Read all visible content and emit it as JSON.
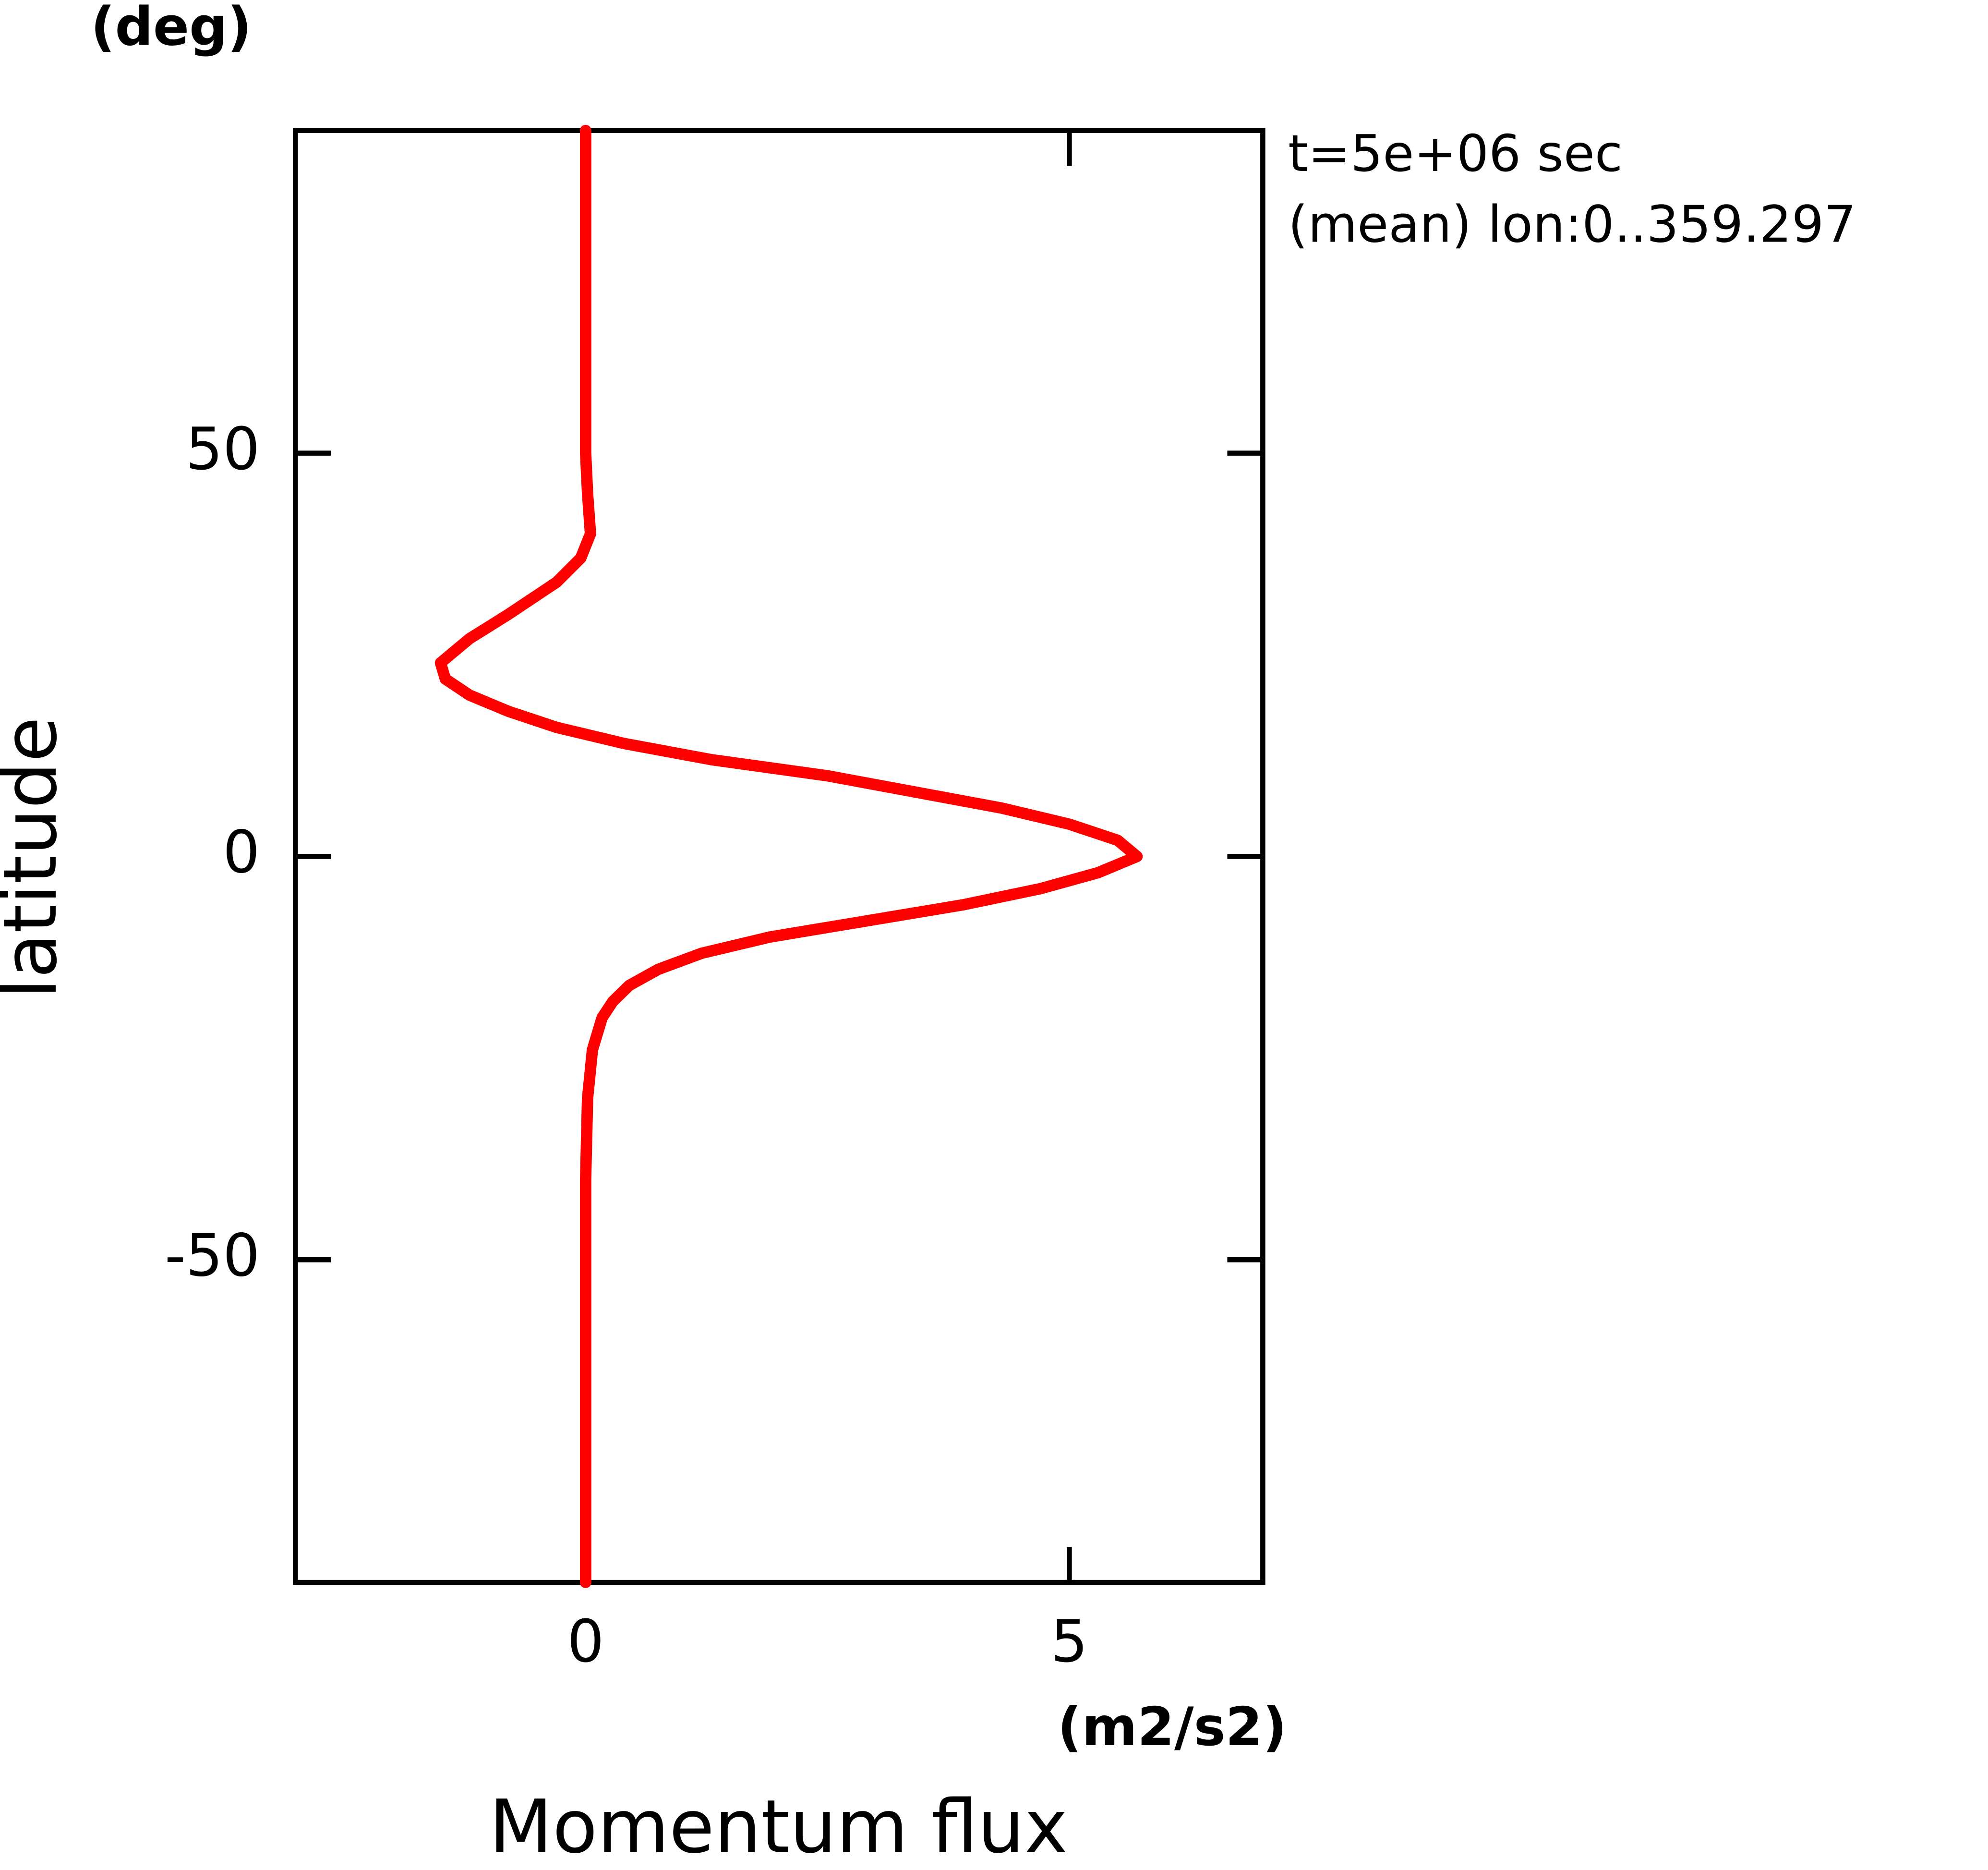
{
  "chart_data": {
    "type": "line",
    "y_label": "latitude",
    "y_unit": "(deg)",
    "x_label": "Momentum flux",
    "x_unit": "(m2/s2)",
    "annotations": [
      "t=5e+06 sec",
      "(mean) lon:0..359.297"
    ],
    "y": [
      90,
      80,
      70,
      60,
      50,
      45,
      40,
      37,
      34,
      30,
      27,
      24,
      22,
      20,
      18,
      16,
      14,
      12,
      10,
      8,
      6,
      4,
      2,
      0,
      -2,
      -4,
      -6,
      -8,
      -10,
      -12,
      -14,
      -16,
      -18,
      -20,
      -24,
      -30,
      -40,
      -50,
      -60,
      -70,
      -80,
      -90
    ],
    "series": [
      {
        "color": "#ff0000",
        "values": [
          0,
          0,
          0,
          0,
          0,
          0.02,
          0.05,
          -0.05,
          -0.3,
          -0.8,
          -1.2,
          -1.5,
          -1.45,
          -1.2,
          -0.8,
          -0.3,
          0.4,
          1.3,
          2.5,
          3.4,
          4.3,
          5.0,
          5.5,
          5.7,
          5.3,
          4.7,
          3.9,
          2.9,
          1.9,
          1.2,
          0.75,
          0.45,
          0.28,
          0.17,
          0.07,
          0.02,
          0,
          0,
          0,
          0,
          0,
          0
        ]
      }
    ],
    "xlim": [
      -3,
      7
    ],
    "xticks": [
      0,
      5
    ],
    "ylim": [
      -90,
      90
    ],
    "yticks": [
      -50,
      0,
      50
    ]
  }
}
